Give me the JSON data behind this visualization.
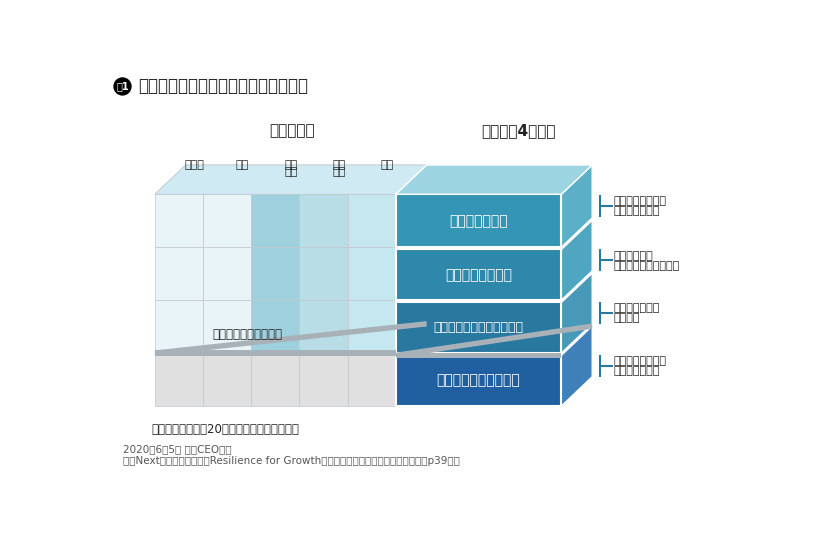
{
  "title": "東芝グループの新しい事業セグメント",
  "fig_label": "図1",
  "industry_label": "産業分野別",
  "function_label": "機能別（4分類）",
  "industry_cols": [
    "自動車",
    "鉄道",
    "上下\n水道",
    "電力\n流通",
    "発電"
  ],
  "segments": [
    {
      "name": "データサービス",
      "desc1": "データ活用による",
      "desc2": "新付加価値創造",
      "color_front": "#3595b5",
      "color_side": "#5bb0c8",
      "color_top": "#9dd4e2"
    },
    {
      "name": "インフラサービス",
      "desc1": "長期にわたる",
      "desc2": "保守・更新・運用受託",
      "color_front": "#2d88ab",
      "color_side": "#50a5c0",
      "color_top": "#8fcad8"
    },
    {
      "name": "インフラシステム（構築）",
      "desc1": "各種インフラの",
      "desc2": "初期構築",
      "color_front": "#2878a0",
      "color_side": "#4898b8",
      "color_top": "#82c0d0"
    },
    {
      "name": "デバイス・プロダクト",
      "desc1": "技術で差別化する",
      "desc2": "ハード・ソフト",
      "color_front": "#2060a0",
      "color_side": "#4080b8",
      "color_top": "#78b0c8"
    }
  ],
  "cell_colors_rows": [
    [
      "#e8f4f8",
      "#e8f4f8",
      "#9fd0de",
      "#b8dde6",
      "#c5e8f0"
    ],
    [
      "#e8f4f8",
      "#e8f4f8",
      "#9fd0de",
      "#b8dde6",
      "#c5e8f0"
    ],
    [
      "#e8f4f8",
      "#e8f4f8",
      "#9fd0de",
      "#b8dde6",
      "#c5e8f0"
    ],
    [
      "#e0e0e0",
      "#e0e0e0",
      "#e0e0e0",
      "#e0e0e0",
      "#e0e0e0"
    ]
  ],
  "top_face_color": "#d0eaf4",
  "sep_color": "#b0b8c0",
  "semiconductor_label": "半導体・モーターなど",
  "bottom_note": "青マスは東芝の約20の事業体が対応する領域",
  "footnote1": "2020年6月5日 車谷CEO報告",
  "footnote2": "東芝Nextプラン進捗報告「Resilience for Growth～インフラサービスカンパニーへ～」p39より",
  "bg_color": "#ffffff",
  "text_color": "#222222",
  "connector_color": "#2878a0"
}
